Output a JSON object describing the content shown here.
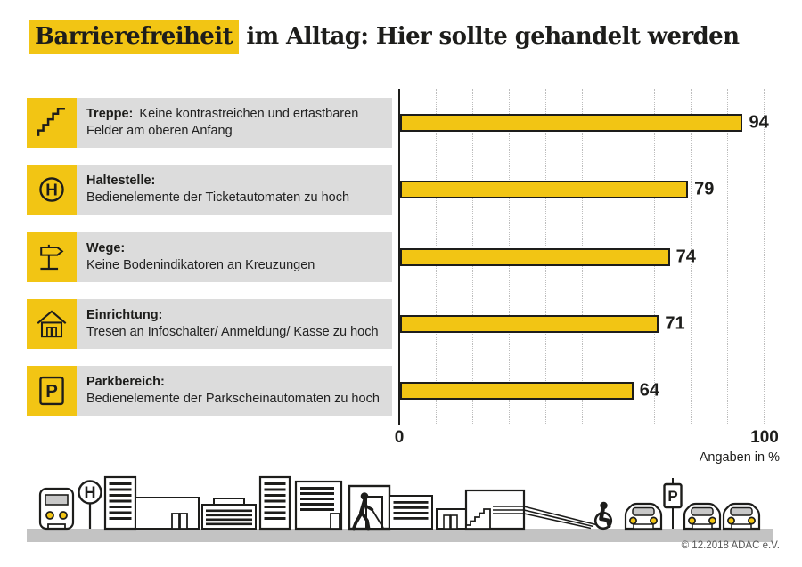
{
  "title": {
    "highlight": "Barrierefreiheit",
    "rest": " im Alltag: Hier sollte gehandelt werden"
  },
  "rows": [
    {
      "icon": "stairs-icon",
      "label": "Treppe:",
      "description": "Keine kontrastreichen und ertastbaren Felder am oberen Anfang",
      "value": "94"
    },
    {
      "icon": "bus-stop-icon",
      "label": "Haltestelle:",
      "description": "Bedienelemente der Ticketautomaten zu hoch",
      "value": "79"
    },
    {
      "icon": "signpost-icon",
      "label": "Wege:",
      "description": "Keine Bodenindikatoren an Kreuzungen",
      "value": "74"
    },
    {
      "icon": "house-icon",
      "label": "Einrichtung:",
      "description": "Tresen an Infoschalter/ Anmeldung/ Kasse zu hoch",
      "value": "71"
    },
    {
      "icon": "parking-icon",
      "label": "Parkbereich:",
      "description": "Bedienelemente der Parkscheinautomaten zu hoch",
      "value": "64"
    }
  ],
  "chart_data": {
    "type": "bar",
    "orientation": "horizontal",
    "title": "Barrierefreiheit im Alltag: Hier sollte gehandelt werden",
    "categories": [
      "Treppe",
      "Haltestelle",
      "Wege",
      "Einrichtung",
      "Parkbereich"
    ],
    "category_descriptions": [
      "Keine kontrastreichen und ertastbaren Felder am oberen Anfang",
      "Bedienelemente der Ticketautomaten zu hoch",
      "Keine Bodenindikatoren an Kreuzungen",
      "Tresen an Infoschalter/ Anmeldung/ Kasse zu hoch",
      "Bedienelemente der Parkscheinautomaten zu hoch"
    ],
    "values": [
      94,
      79,
      74,
      71,
      64
    ],
    "xlabel": "Angaben in %",
    "xlim": [
      0,
      100
    ],
    "x_ticks_shown": [
      "0",
      "100"
    ],
    "gridlines": "dotted vertical lines every 10 units",
    "legend": "none",
    "bar_color": "#F2C514"
  },
  "axis": {
    "tick_min": "0",
    "tick_max": "100",
    "note": "Angaben in %"
  },
  "icon_letters": {
    "bus_stop": "H",
    "parking": "P"
  },
  "footer": {
    "copyright": "© 12.2018 ADAC e.V."
  },
  "colors": {
    "accent_yellow": "#F2C514",
    "label_bg": "#DCDCDC",
    "ground_gray": "#C3C3C3",
    "text": "#1D1D1B",
    "grid": "#BDBDBD"
  }
}
